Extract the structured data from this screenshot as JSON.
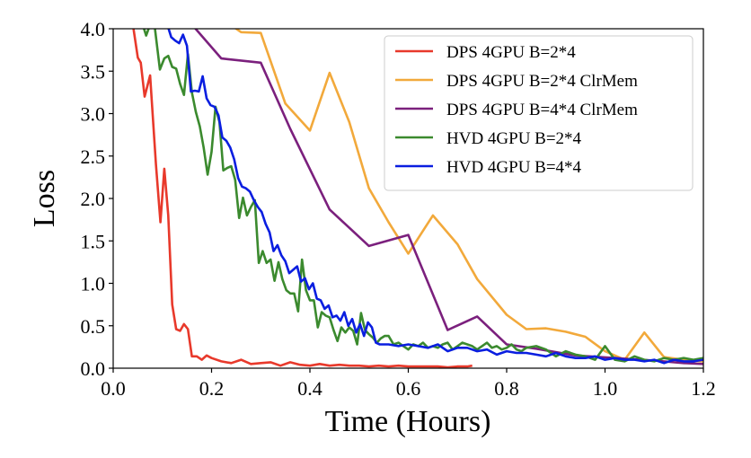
{
  "chart_data": {
    "type": "line",
    "title": "",
    "xlabel": "Time (Hours)",
    "ylabel": "Loss",
    "xlim": [
      0.0,
      1.2
    ],
    "ylim": [
      0.0,
      4.0
    ],
    "xticks": [
      "0.0",
      "0.2",
      "0.4",
      "0.6",
      "0.8",
      "1.0",
      "1.2"
    ],
    "yticks": [
      "0.0",
      "0.5",
      "1.0",
      "1.5",
      "2.0",
      "2.5",
      "3.0",
      "3.5",
      "4.0"
    ],
    "grid": false,
    "legend": "top-right",
    "series": [
      {
        "name": "DPS 4GPU B=2*4",
        "color": "#e8392b",
        "points": [
          [
            0.0,
            4.4
          ],
          [
            0.04,
            4.05
          ],
          [
            0.05,
            3.66
          ],
          [
            0.056,
            3.6
          ],
          [
            0.064,
            3.2
          ],
          [
            0.075,
            3.45
          ],
          [
            0.087,
            2.4
          ],
          [
            0.096,
            1.72
          ],
          [
            0.104,
            2.35
          ],
          [
            0.112,
            1.8
          ],
          [
            0.12,
            0.75
          ],
          [
            0.128,
            0.46
          ],
          [
            0.136,
            0.44
          ],
          [
            0.144,
            0.52
          ],
          [
            0.152,
            0.46
          ],
          [
            0.16,
            0.14
          ],
          [
            0.17,
            0.14
          ],
          [
            0.18,
            0.1
          ],
          [
            0.19,
            0.15
          ],
          [
            0.2,
            0.12
          ],
          [
            0.22,
            0.08
          ],
          [
            0.24,
            0.06
          ],
          [
            0.26,
            0.1
          ],
          [
            0.28,
            0.05
          ],
          [
            0.3,
            0.06
          ],
          [
            0.32,
            0.07
          ],
          [
            0.34,
            0.03
          ],
          [
            0.36,
            0.07
          ],
          [
            0.38,
            0.04
          ],
          [
            0.4,
            0.03
          ],
          [
            0.42,
            0.05
          ],
          [
            0.44,
            0.03
          ],
          [
            0.46,
            0.04
          ],
          [
            0.48,
            0.03
          ],
          [
            0.5,
            0.03
          ],
          [
            0.52,
            0.02
          ],
          [
            0.54,
            0.03
          ],
          [
            0.56,
            0.02
          ],
          [
            0.58,
            0.03
          ],
          [
            0.6,
            0.02
          ],
          [
            0.62,
            0.02
          ],
          [
            0.64,
            0.02
          ],
          [
            0.66,
            0.02
          ],
          [
            0.68,
            0.01
          ],
          [
            0.7,
            0.02
          ],
          [
            0.72,
            0.02
          ],
          [
            0.73,
            0.03
          ]
        ]
      },
      {
        "name": "DPS 4GPU B=2*4 ClrMem",
        "color": "#f2a93b",
        "points": [
          [
            0.0,
            4.4
          ],
          [
            0.2,
            4.2
          ],
          [
            0.26,
            3.96
          ],
          [
            0.3,
            3.95
          ],
          [
            0.35,
            3.12
          ],
          [
            0.4,
            2.8
          ],
          [
            0.44,
            3.48
          ],
          [
            0.48,
            2.9
          ],
          [
            0.52,
            2.12
          ],
          [
            0.56,
            1.72
          ],
          [
            0.6,
            1.35
          ],
          [
            0.65,
            1.8
          ],
          [
            0.7,
            1.46
          ],
          [
            0.74,
            1.05
          ],
          [
            0.8,
            0.63
          ],
          [
            0.84,
            0.46
          ],
          [
            0.88,
            0.47
          ],
          [
            0.92,
            0.43
          ],
          [
            0.96,
            0.37
          ],
          [
            1.0,
            0.2
          ],
          [
            1.04,
            0.1
          ],
          [
            1.08,
            0.42
          ],
          [
            1.12,
            0.13
          ],
          [
            1.16,
            0.1
          ],
          [
            1.2,
            0.08
          ]
        ]
      },
      {
        "name": "DPS 4GPU B=4*4 ClrMem",
        "color": "#7b207d",
        "points": [
          [
            0.0,
            4.4
          ],
          [
            0.16,
            4.05
          ],
          [
            0.22,
            3.65
          ],
          [
            0.3,
            3.6
          ],
          [
            0.36,
            2.82
          ],
          [
            0.44,
            1.87
          ],
          [
            0.52,
            1.44
          ],
          [
            0.6,
            1.57
          ],
          [
            0.68,
            0.45
          ],
          [
            0.74,
            0.61
          ],
          [
            0.8,
            0.28
          ],
          [
            0.86,
            0.23
          ],
          [
            0.94,
            0.15
          ],
          [
            1.02,
            0.12
          ],
          [
            1.1,
            0.09
          ],
          [
            1.16,
            0.06
          ],
          [
            1.2,
            0.05
          ]
        ]
      },
      {
        "name": "HVD 4GPU B=2*4",
        "color": "#3b8a2e",
        "points": [
          [
            0.06,
            4.05
          ],
          [
            0.067,
            3.92
          ],
          [
            0.075,
            4.05
          ],
          [
            0.085,
            4.0
          ],
          [
            0.095,
            3.52
          ],
          [
            0.104,
            3.65
          ],
          [
            0.112,
            3.68
          ],
          [
            0.12,
            3.55
          ],
          [
            0.128,
            3.53
          ],
          [
            0.136,
            3.35
          ],
          [
            0.144,
            3.22
          ],
          [
            0.152,
            3.7
          ],
          [
            0.16,
            3.25
          ],
          [
            0.168,
            3.02
          ],
          [
            0.176,
            2.85
          ],
          [
            0.184,
            2.6
          ],
          [
            0.192,
            2.28
          ],
          [
            0.2,
            2.55
          ],
          [
            0.208,
            3.08
          ],
          [
            0.216,
            2.9
          ],
          [
            0.224,
            2.33
          ],
          [
            0.232,
            2.36
          ],
          [
            0.24,
            2.38
          ],
          [
            0.248,
            2.22
          ],
          [
            0.256,
            1.77
          ],
          [
            0.264,
            2.01
          ],
          [
            0.272,
            1.8
          ],
          [
            0.28,
            1.9
          ],
          [
            0.288,
            1.98
          ],
          [
            0.296,
            1.24
          ],
          [
            0.304,
            1.38
          ],
          [
            0.312,
            1.24
          ],
          [
            0.32,
            1.28
          ],
          [
            0.328,
            1.03
          ],
          [
            0.336,
            1.25
          ],
          [
            0.344,
            1.05
          ],
          [
            0.352,
            0.92
          ],
          [
            0.36,
            0.88
          ],
          [
            0.368,
            0.88
          ],
          [
            0.376,
            0.67
          ],
          [
            0.384,
            1.28
          ],
          [
            0.392,
            0.92
          ],
          [
            0.4,
            0.8
          ],
          [
            0.408,
            0.8
          ],
          [
            0.416,
            0.48
          ],
          [
            0.424,
            0.66
          ],
          [
            0.432,
            0.62
          ],
          [
            0.44,
            0.6
          ],
          [
            0.448,
            0.45
          ],
          [
            0.456,
            0.32
          ],
          [
            0.464,
            0.48
          ],
          [
            0.472,
            0.42
          ],
          [
            0.48,
            0.48
          ],
          [
            0.488,
            0.44
          ],
          [
            0.496,
            0.28
          ],
          [
            0.504,
            0.65
          ],
          [
            0.512,
            0.45
          ],
          [
            0.52,
            0.4
          ],
          [
            0.528,
            0.36
          ],
          [
            0.536,
            0.3
          ],
          [
            0.544,
            0.35
          ],
          [
            0.552,
            0.38
          ],
          [
            0.56,
            0.38
          ],
          [
            0.57,
            0.28
          ],
          [
            0.58,
            0.3
          ],
          [
            0.59,
            0.26
          ],
          [
            0.6,
            0.22
          ],
          [
            0.61,
            0.28
          ],
          [
            0.62,
            0.26
          ],
          [
            0.63,
            0.3
          ],
          [
            0.64,
            0.24
          ],
          [
            0.65,
            0.26
          ],
          [
            0.66,
            0.24
          ],
          [
            0.67,
            0.28
          ],
          [
            0.68,
            0.3
          ],
          [
            0.69,
            0.22
          ],
          [
            0.7,
            0.26
          ],
          [
            0.71,
            0.3
          ],
          [
            0.72,
            0.28
          ],
          [
            0.73,
            0.26
          ],
          [
            0.74,
            0.22
          ],
          [
            0.75,
            0.26
          ],
          [
            0.76,
            0.3
          ],
          [
            0.77,
            0.24
          ],
          [
            0.78,
            0.26
          ],
          [
            0.79,
            0.22
          ],
          [
            0.8,
            0.24
          ],
          [
            0.81,
            0.28
          ],
          [
            0.82,
            0.22
          ],
          [
            0.83,
            0.2
          ],
          [
            0.84,
            0.24
          ],
          [
            0.86,
            0.26
          ],
          [
            0.88,
            0.22
          ],
          [
            0.9,
            0.14
          ],
          [
            0.92,
            0.2
          ],
          [
            0.94,
            0.16
          ],
          [
            0.96,
            0.14
          ],
          [
            0.98,
            0.1
          ],
          [
            1.0,
            0.26
          ],
          [
            1.02,
            0.1
          ],
          [
            1.04,
            0.08
          ],
          [
            1.06,
            0.14
          ],
          [
            1.08,
            0.1
          ],
          [
            1.1,
            0.08
          ],
          [
            1.12,
            0.12
          ],
          [
            1.14,
            0.1
          ],
          [
            1.16,
            0.12
          ],
          [
            1.18,
            0.1
          ],
          [
            1.2,
            0.12
          ]
        ]
      },
      {
        "name": "HVD 4GPU B=4*4",
        "color": "#0a1ee0",
        "points": [
          [
            0.11,
            4.05
          ],
          [
            0.118,
            3.9
          ],
          [
            0.126,
            3.86
          ],
          [
            0.134,
            3.83
          ],
          [
            0.142,
            3.93
          ],
          [
            0.15,
            3.8
          ],
          [
            0.158,
            3.26
          ],
          [
            0.166,
            3.27
          ],
          [
            0.174,
            3.26
          ],
          [
            0.182,
            3.44
          ],
          [
            0.19,
            3.18
          ],
          [
            0.198,
            3.1
          ],
          [
            0.206,
            3.08
          ],
          [
            0.214,
            2.98
          ],
          [
            0.222,
            2.72
          ],
          [
            0.23,
            2.68
          ],
          [
            0.238,
            2.6
          ],
          [
            0.246,
            2.46
          ],
          [
            0.254,
            2.24
          ],
          [
            0.262,
            2.14
          ],
          [
            0.27,
            2.12
          ],
          [
            0.278,
            2.08
          ],
          [
            0.286,
            1.98
          ],
          [
            0.294,
            1.9
          ],
          [
            0.302,
            1.84
          ],
          [
            0.31,
            1.7
          ],
          [
            0.318,
            1.6
          ],
          [
            0.326,
            1.38
          ],
          [
            0.334,
            1.45
          ],
          [
            0.342,
            1.33
          ],
          [
            0.35,
            1.26
          ],
          [
            0.358,
            1.12
          ],
          [
            0.366,
            1.16
          ],
          [
            0.374,
            1.2
          ],
          [
            0.382,
            1.02
          ],
          [
            0.39,
            1.06
          ],
          [
            0.398,
            0.93
          ],
          [
            0.406,
            1.0
          ],
          [
            0.414,
            0.82
          ],
          [
            0.422,
            0.8
          ],
          [
            0.43,
            0.7
          ],
          [
            0.438,
            0.74
          ],
          [
            0.446,
            0.6
          ],
          [
            0.454,
            0.62
          ],
          [
            0.462,
            0.56
          ],
          [
            0.47,
            0.66
          ],
          [
            0.478,
            0.5
          ],
          [
            0.486,
            0.58
          ],
          [
            0.494,
            0.42
          ],
          [
            0.502,
            0.52
          ],
          [
            0.51,
            0.38
          ],
          [
            0.518,
            0.54
          ],
          [
            0.526,
            0.48
          ],
          [
            0.534,
            0.3
          ],
          [
            0.542,
            0.28
          ],
          [
            0.56,
            0.28
          ],
          [
            0.58,
            0.26
          ],
          [
            0.6,
            0.28
          ],
          [
            0.62,
            0.26
          ],
          [
            0.64,
            0.24
          ],
          [
            0.66,
            0.28
          ],
          [
            0.68,
            0.2
          ],
          [
            0.7,
            0.24
          ],
          [
            0.72,
            0.24
          ],
          [
            0.74,
            0.2
          ],
          [
            0.76,
            0.22
          ],
          [
            0.78,
            0.16
          ],
          [
            0.8,
            0.2
          ],
          [
            0.82,
            0.18
          ],
          [
            0.84,
            0.18
          ],
          [
            0.86,
            0.16
          ],
          [
            0.88,
            0.14
          ],
          [
            0.9,
            0.18
          ],
          [
            0.92,
            0.14
          ],
          [
            0.94,
            0.12
          ],
          [
            0.96,
            0.12
          ],
          [
            0.98,
            0.14
          ],
          [
            1.0,
            0.1
          ],
          [
            1.02,
            0.12
          ],
          [
            1.04,
            0.1
          ],
          [
            1.06,
            0.1
          ],
          [
            1.08,
            0.08
          ],
          [
            1.1,
            0.1
          ],
          [
            1.12,
            0.06
          ],
          [
            1.14,
            0.1
          ],
          [
            1.16,
            0.08
          ],
          [
            1.18,
            0.08
          ],
          [
            1.2,
            0.1
          ]
        ]
      }
    ]
  }
}
